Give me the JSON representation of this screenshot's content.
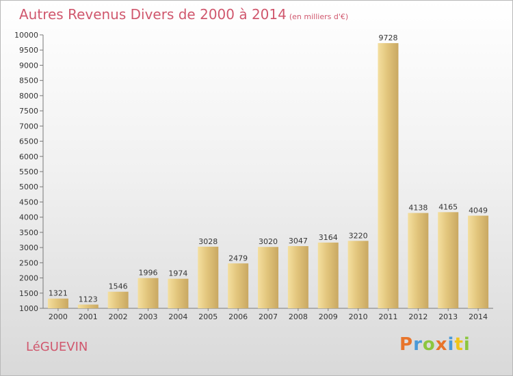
{
  "title": "Autres Revenus Divers de 2000 à 2014",
  "subtitle": "(en milliers d'€)",
  "commune": "LéGUEVIN",
  "logo": {
    "letters": [
      "P",
      "r",
      "o",
      "x",
      "i",
      "t",
      "i"
    ],
    "colors": [
      "#e8742a",
      "#4a9ad8",
      "#8cc63f",
      "#e8742a",
      "#4a9ad8",
      "#f0c419",
      "#8cc63f"
    ]
  },
  "colors": {
    "bar": "#e2c57c",
    "bar_light": "#f4df9f",
    "bar_dark": "#c9a862",
    "text": "#333333",
    "title": "#d0576d"
  },
  "chart_data": {
    "type": "bar",
    "title": "Autres Revenus Divers de 2000 à 2014",
    "subtitle": "(en milliers d'€)",
    "categories": [
      "2000",
      "2001",
      "2002",
      "2003",
      "2004",
      "2005",
      "2006",
      "2007",
      "2008",
      "2009",
      "2010",
      "2011",
      "2012",
      "2013",
      "2014"
    ],
    "values": [
      1321,
      1123,
      1546,
      1996,
      1974,
      3028,
      2479,
      3020,
      3047,
      3164,
      3220,
      9728,
      4138,
      4165,
      4049
    ],
    "ylim": [
      1000,
      10000
    ],
    "yticks": [
      1000,
      1500,
      2000,
      2500,
      3000,
      3500,
      4000,
      4500,
      5000,
      5500,
      6000,
      6500,
      7000,
      7500,
      8000,
      8500,
      9000,
      9500,
      10000
    ],
    "grid": false,
    "xlabel": "",
    "ylabel": ""
  }
}
